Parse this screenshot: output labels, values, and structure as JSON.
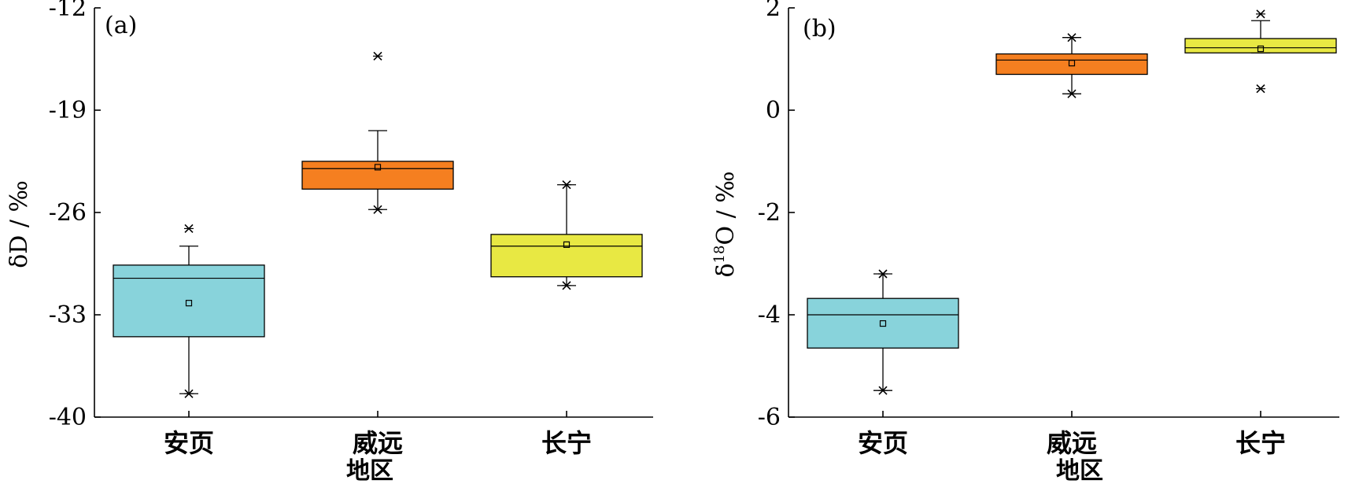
{
  "chart_data": [
    {
      "type": "box",
      "panel_label": "(a)",
      "ylabel": "δD / ‰",
      "xlabel": "地区",
      "ylim": [
        -40,
        -12
      ],
      "yticks": [
        -40,
        -33,
        -26,
        -19,
        -12
      ],
      "categories": [
        "安页",
        "威远",
        "长宁"
      ],
      "colors": [
        "#88D3DB",
        "#F57F20",
        "#E8E843"
      ],
      "boxes": [
        {
          "category": "安页",
          "q1": -34.5,
          "median": -30.5,
          "q3": -29.6,
          "mean": -32.2,
          "whisker_low": -38.4,
          "whisker_high": -28.3,
          "outliers_low": [
            -38.4
          ],
          "outliers_high": [
            -27.1
          ]
        },
        {
          "category": "威远",
          "q1": -24.4,
          "median": -23.0,
          "q3": -22.5,
          "mean": -22.9,
          "whisker_low": -25.8,
          "whisker_high": -20.4,
          "outliers_low": [
            -25.8
          ],
          "outliers_high": [
            -15.3
          ]
        },
        {
          "category": "长宁",
          "q1": -30.4,
          "median": -28.3,
          "q3": -27.5,
          "mean": -28.2,
          "whisker_low": -31.0,
          "whisker_high": -24.1,
          "outliers_low": [
            -31.0
          ],
          "outliers_high": [
            -24.1
          ]
        }
      ]
    },
    {
      "type": "box",
      "panel_label": "(b)",
      "ylabel_main": "δ",
      "ylabel_sup": "18",
      "ylabel_rest": "O / ‰",
      "xlabel": "地区",
      "ylim": [
        -6,
        2
      ],
      "yticks": [
        -6,
        -4,
        -2,
        0,
        2
      ],
      "categories": [
        "安页",
        "威远",
        "长宁"
      ],
      "colors": [
        "#88D3DB",
        "#F57F20",
        "#E8E843"
      ],
      "boxes": [
        {
          "category": "安页",
          "q1": -4.65,
          "median": -4.0,
          "q3": -3.68,
          "mean": -4.17,
          "whisker_low": -5.48,
          "whisker_high": -3.2,
          "outliers_low": [
            -5.48
          ],
          "outliers_high": [
            -3.2
          ]
        },
        {
          "category": "威远",
          "q1": 0.7,
          "median": 0.98,
          "q3": 1.1,
          "mean": 0.92,
          "whisker_low": 0.32,
          "whisker_high": 1.42,
          "outliers_low": [
            0.32
          ],
          "outliers_high": [
            1.42
          ]
        },
        {
          "category": "长宁",
          "q1": 1.12,
          "median": 1.22,
          "q3": 1.4,
          "mean": 1.2,
          "whisker_low": 1.12,
          "whisker_high": 1.75,
          "outliers_low": [
            0.42
          ],
          "outliers_high": [
            1.88
          ]
        }
      ]
    }
  ]
}
